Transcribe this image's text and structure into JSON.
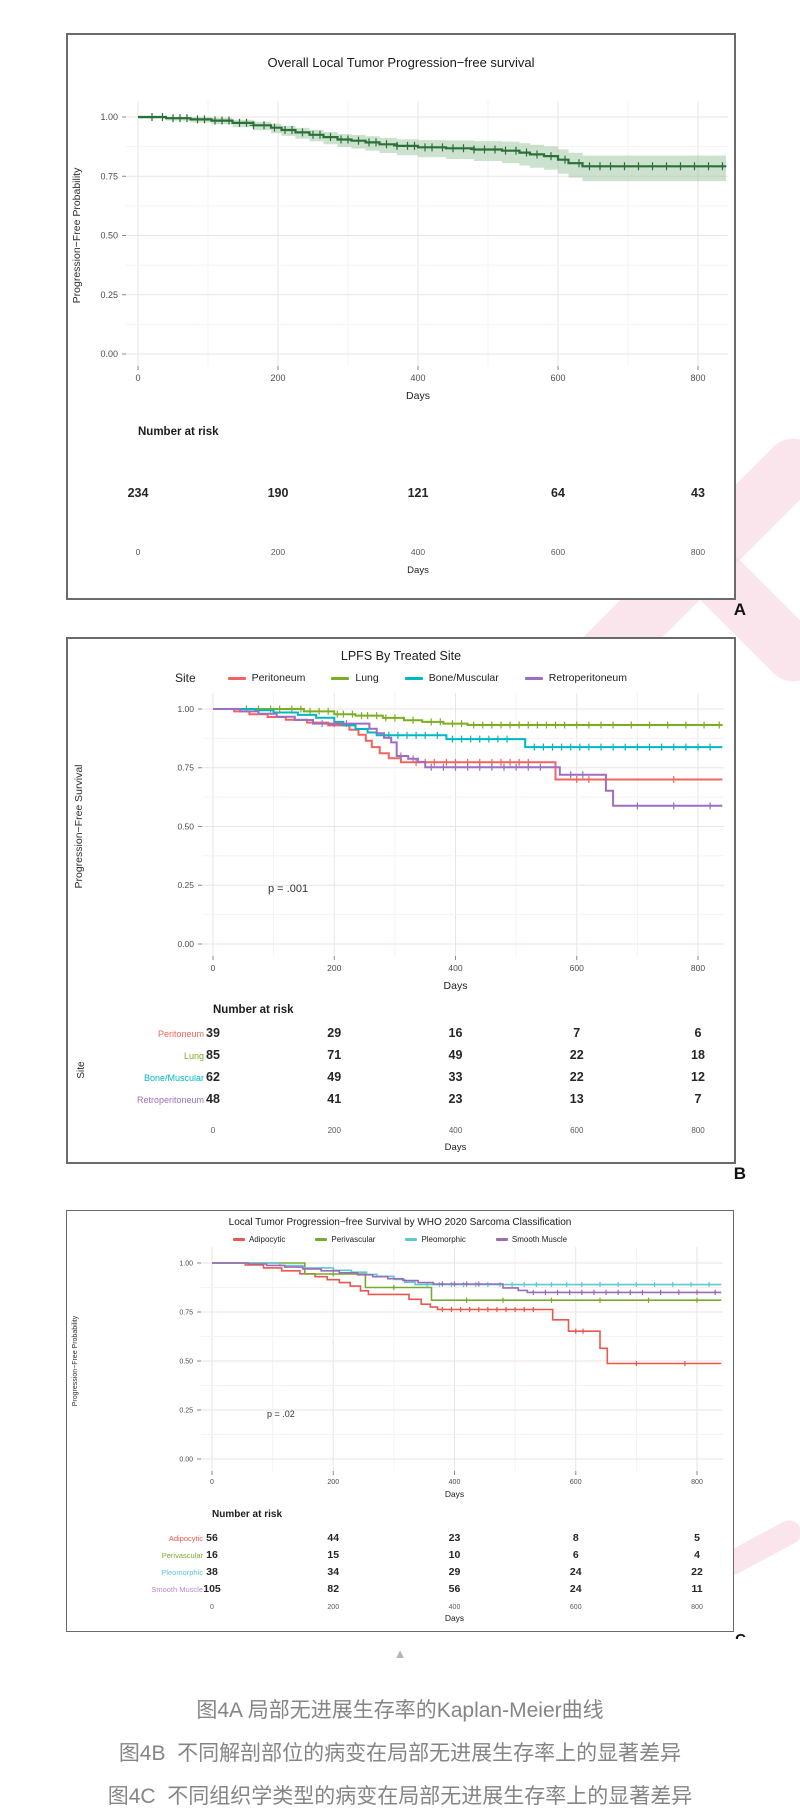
{
  "page": {
    "collapse_icon": "▲",
    "caption": {
      "lines": [
        "图4A 局部无进展生存率的Kaplan-Meier曲线",
        "图4B  不同解剖部位的病变在局部无进展生存率上的显著差异",
        "图4C  不同组织学类型的病变在局部无进展生存率上的显著差异"
      ]
    }
  },
  "chart_data": [
    {
      "type": "line",
      "subtype": "kaplan-meier",
      "id": "a",
      "panel_label": "A",
      "title": "Overall Local Tumor Progression−free survival",
      "xlabel": "Days",
      "ylabel": "Progression−Free Probability",
      "xlim": [
        0,
        860
      ],
      "ylim": [
        0,
        1
      ],
      "grid": true,
      "legend_position": "none",
      "xticks": [
        0,
        200,
        400,
        600,
        800
      ],
      "ytick_labels": [
        "1.00",
        "0.75",
        "0.50",
        "0.25",
        "0.00"
      ],
      "risk_title": "Number at risk",
      "axis2_label": "Days",
      "series": [
        {
          "name": "Overall",
          "color": "#2a7038",
          "band": true,
          "band_color": "#8fbf92",
          "steps": [
            [
              0,
              1.0
            ],
            [
              40,
              0.995
            ],
            [
              75,
              0.99
            ],
            [
              105,
              0.985
            ],
            [
              135,
              0.975
            ],
            [
              165,
              0.965
            ],
            [
              190,
              0.955
            ],
            [
              205,
              0.945
            ],
            [
              225,
              0.935
            ],
            [
              245,
              0.925
            ],
            [
              265,
              0.915
            ],
            [
              285,
              0.905
            ],
            [
              305,
              0.9
            ],
            [
              325,
              0.893
            ],
            [
              345,
              0.885
            ],
            [
              370,
              0.878
            ],
            [
              400,
              0.872
            ],
            [
              440,
              0.868
            ],
            [
              480,
              0.863
            ],
            [
              520,
              0.858
            ],
            [
              545,
              0.85
            ],
            [
              560,
              0.842
            ],
            [
              580,
              0.835
            ],
            [
              600,
              0.82
            ],
            [
              615,
              0.805
            ],
            [
              635,
              0.792
            ],
            [
              840,
              0.792
            ]
          ],
          "censors": [
            20,
            35,
            50,
            60,
            70,
            85,
            95,
            110,
            120,
            130,
            145,
            155,
            165,
            180,
            195,
            210,
            220,
            235,
            250,
            260,
            275,
            290,
            300,
            315,
            330,
            340,
            355,
            370,
            385,
            395,
            410,
            420,
            435,
            450,
            465,
            480,
            495,
            510,
            525,
            540,
            555,
            570,
            590,
            610,
            630,
            645,
            660,
            675,
            695,
            715,
            735,
            755,
            775,
            795,
            815,
            835
          ]
        }
      ],
      "risk_rows": [
        {
          "label": "",
          "color": "#333333",
          "values": [
            234,
            190,
            121,
            64,
            43
          ]
        }
      ]
    },
    {
      "type": "line",
      "subtype": "kaplan-meier",
      "id": "b",
      "panel_label": "B",
      "title": "LPFS By Treated Site",
      "legend_title": "Site",
      "p_value": "p = .001",
      "xlabel": "Days",
      "ylabel": "Progression−Free Survival",
      "xlim": [
        0,
        860
      ],
      "ylim": [
        0,
        1
      ],
      "grid": true,
      "legend_position": "top",
      "xticks": [
        0,
        200,
        400,
        600,
        800
      ],
      "ytick_labels": [
        "1.00",
        "0.75",
        "0.50",
        "0.25",
        "0.00"
      ],
      "risk_title": "Number at risk",
      "risk_axis_label": "Site",
      "axis2_label": "Days",
      "series": [
        {
          "name": "Peritoneum",
          "color": "#f1655c",
          "steps": [
            [
              0,
              1
            ],
            [
              35,
              0.99
            ],
            [
              60,
              0.978
            ],
            [
              90,
              0.966
            ],
            [
              120,
              0.954
            ],
            [
              155,
              0.942
            ],
            [
              190,
              0.93
            ],
            [
              225,
              0.912
            ],
            [
              240,
              0.89
            ],
            [
              252,
              0.865
            ],
            [
              262,
              0.838
            ],
            [
              275,
              0.812
            ],
            [
              290,
              0.79
            ],
            [
              310,
              0.773
            ],
            [
              545,
              0.773
            ],
            [
              565,
              0.7
            ],
            [
              840,
              0.7
            ]
          ],
          "censors": [
            335,
            350,
            365,
            385,
            400,
            420,
            440,
            460,
            475,
            490,
            505,
            520,
            600,
            620,
            760
          ]
        },
        {
          "name": "Lung",
          "color": "#7cae21",
          "steps": [
            [
              0,
              1
            ],
            [
              120,
              1
            ],
            [
              150,
              0.99
            ],
            [
              200,
              0.978
            ],
            [
              235,
              0.972
            ],
            [
              280,
              0.962
            ],
            [
              315,
              0.952
            ],
            [
              345,
              0.945
            ],
            [
              380,
              0.938
            ],
            [
              420,
              0.932
            ],
            [
              840,
              0.932
            ]
          ],
          "censors": [
            55,
            75,
            95,
            110,
            130,
            145,
            160,
            175,
            190,
            205,
            215,
            230,
            245,
            255,
            270,
            285,
            300,
            330,
            360,
            375,
            395,
            410,
            430,
            445,
            460,
            475,
            490,
            505,
            520,
            535,
            550,
            565,
            580,
            600,
            620,
            640,
            660,
            690,
            720,
            750,
            780,
            810,
            835
          ]
        },
        {
          "name": "Bone/Muscular",
          "color": "#00b9c0",
          "steps": [
            [
              0,
              1
            ],
            [
              70,
              0.995
            ],
            [
              100,
              0.985
            ],
            [
              140,
              0.975
            ],
            [
              170,
              0.963
            ],
            [
              200,
              0.945
            ],
            [
              215,
              0.93
            ],
            [
              235,
              0.915
            ],
            [
              255,
              0.9
            ],
            [
              270,
              0.888
            ],
            [
              360,
              0.888
            ],
            [
              385,
              0.872
            ],
            [
              500,
              0.872
            ],
            [
              515,
              0.838
            ],
            [
              840,
              0.838
            ]
          ],
          "censors": [
            290,
            305,
            320,
            335,
            350,
            370,
            395,
            410,
            425,
            440,
            455,
            470,
            485,
            530,
            545,
            560,
            575,
            590,
            605,
            620,
            640,
            660,
            680,
            700,
            720,
            740,
            760,
            780,
            800,
            820
          ]
        },
        {
          "name": "Retroperitoneum",
          "color": "#9d6ec1",
          "steps": [
            [
              0,
              1
            ],
            [
              45,
              0.99
            ],
            [
              75,
              0.98
            ],
            [
              105,
              0.967
            ],
            [
              135,
              0.953
            ],
            [
              165,
              0.938
            ],
            [
              245,
              0.938
            ],
            [
              258,
              0.916
            ],
            [
              270,
              0.897
            ],
            [
              282,
              0.878
            ],
            [
              294,
              0.858
            ],
            [
              303,
              0.8
            ],
            [
              322,
              0.788
            ],
            [
              338,
              0.775
            ],
            [
              350,
              0.752
            ],
            [
              558,
              0.752
            ],
            [
              572,
              0.72
            ],
            [
              635,
              0.72
            ],
            [
              648,
              0.652
            ],
            [
              660,
              0.588
            ],
            [
              840,
              0.588
            ]
          ],
          "censors": [
            180,
            200,
            220,
            310,
            330,
            360,
            380,
            400,
            420,
            440,
            460,
            480,
            500,
            520,
            540,
            590,
            610,
            700,
            760,
            820
          ]
        }
      ],
      "risk_rows": [
        {
          "label": "Peritoneum",
          "color": "#f1655c",
          "values": [
            39,
            29,
            16,
            7,
            6
          ]
        },
        {
          "label": "Lung",
          "color": "#7cae21",
          "values": [
            85,
            71,
            49,
            22,
            18
          ]
        },
        {
          "label": "Bone/Muscular",
          "color": "#00b9c0",
          "values": [
            62,
            49,
            33,
            22,
            12
          ]
        },
        {
          "label": "Retroperitoneum",
          "color": "#9d6ec1",
          "values": [
            48,
            41,
            23,
            13,
            7
          ]
        }
      ]
    },
    {
      "type": "line",
      "subtype": "kaplan-meier",
      "id": "c",
      "panel_label": "C",
      "title": "Local Tumor Progression−free Survival by WHO 2020 Sarcoma Classification",
      "p_value": "p = .02",
      "xlabel": "Days",
      "ylabel": "Progression−Free Probability",
      "xlim": [
        0,
        860
      ],
      "ylim": [
        0,
        1
      ],
      "grid": true,
      "legend_position": "top",
      "xticks": [
        0,
        200,
        400,
        600,
        800
      ],
      "ytick_labels": [
        "1.00",
        "0.75",
        "0.50",
        "0.25",
        "0.00"
      ],
      "risk_title": "Number at risk",
      "axis2_label": "Days",
      "series": [
        {
          "name": "Adipocytic",
          "color": "#e8584f",
          "steps": [
            [
              0,
              1
            ],
            [
              55,
              0.99
            ],
            [
              85,
              0.975
            ],
            [
              115,
              0.96
            ],
            [
              145,
              0.945
            ],
            [
              170,
              0.93
            ],
            [
              190,
              0.915
            ],
            [
              210,
              0.9
            ],
            [
              228,
              0.882
            ],
            [
              245,
              0.858
            ],
            [
              258,
              0.84
            ],
            [
              310,
              0.84
            ],
            [
              325,
              0.815
            ],
            [
              345,
              0.79
            ],
            [
              360,
              0.775
            ],
            [
              372,
              0.763
            ],
            [
              550,
              0.763
            ],
            [
              562,
              0.71
            ],
            [
              588,
              0.652
            ],
            [
              628,
              0.652
            ],
            [
              640,
              0.565
            ],
            [
              652,
              0.487
            ],
            [
              840,
              0.487
            ]
          ],
          "censors": [
            380,
            395,
            410,
            425,
            440,
            455,
            470,
            485,
            500,
            515,
            530,
            600,
            612,
            700,
            780
          ]
        },
        {
          "name": "Perivascular",
          "color": "#78aa2f",
          "steps": [
            [
              0,
              1
            ],
            [
              148,
              1
            ],
            [
              153,
              0.944
            ],
            [
              248,
              0.944
            ],
            [
              253,
              0.875
            ],
            [
              355,
              0.875
            ],
            [
              362,
              0.81
            ],
            [
              840,
              0.81
            ]
          ],
          "censors": [
            200,
            300,
            420,
            480,
            560,
            640,
            720,
            800
          ]
        },
        {
          "name": "Pleomorphic",
          "color": "#5ec8d9",
          "steps": [
            [
              0,
              1
            ],
            [
              95,
              1
            ],
            [
              112,
              0.987
            ],
            [
              150,
              0.975
            ],
            [
              200,
              0.963
            ],
            [
              230,
              0.953
            ],
            [
              255,
              0.942
            ],
            [
              272,
              0.932
            ],
            [
              300,
              0.916
            ],
            [
              318,
              0.902
            ],
            [
              335,
              0.89
            ],
            [
              840,
              0.89
            ]
          ],
          "censors": [
            355,
            375,
            395,
            415,
            435,
            455,
            475,
            495,
            515,
            535,
            560,
            585,
            610,
            640,
            670,
            700,
            730,
            760,
            790,
            820
          ]
        },
        {
          "name": "Smooth Muscle",
          "color": "#9c6bb4",
          "steps": [
            [
              0,
              1
            ],
            [
              60,
              0.995
            ],
            [
              90,
              0.988
            ],
            [
              120,
              0.979
            ],
            [
              150,
              0.97
            ],
            [
              180,
              0.96
            ],
            [
              210,
              0.95
            ],
            [
              240,
              0.94
            ],
            [
              265,
              0.93
            ],
            [
              290,
              0.92
            ],
            [
              315,
              0.91
            ],
            [
              340,
              0.9
            ],
            [
              365,
              0.893
            ],
            [
              460,
              0.893
            ],
            [
              480,
              0.873
            ],
            [
              505,
              0.86
            ],
            [
              520,
              0.85
            ],
            [
              840,
              0.85
            ]
          ],
          "censors": [
            380,
            400,
            420,
            440,
            530,
            550,
            570,
            590,
            610,
            630,
            650,
            670,
            690,
            710,
            740,
            770,
            800,
            830
          ]
        }
      ],
      "risk_rows": [
        {
          "label": "Adipocytic",
          "color": "#e8584f",
          "values": [
            56,
            44,
            23,
            8,
            5
          ]
        },
        {
          "label": "Perivascular",
          "color": "#78aa2f",
          "values": [
            16,
            15,
            10,
            6,
            4
          ]
        },
        {
          "label": "Pleomorphic",
          "color": "#5ec8d9",
          "values": [
            38,
            34,
            29,
            24,
            22
          ]
        },
        {
          "label": "Smooth Muscle",
          "color": "#bb89c8",
          "values": [
            105,
            82,
            56,
            24,
            11
          ]
        }
      ]
    }
  ]
}
